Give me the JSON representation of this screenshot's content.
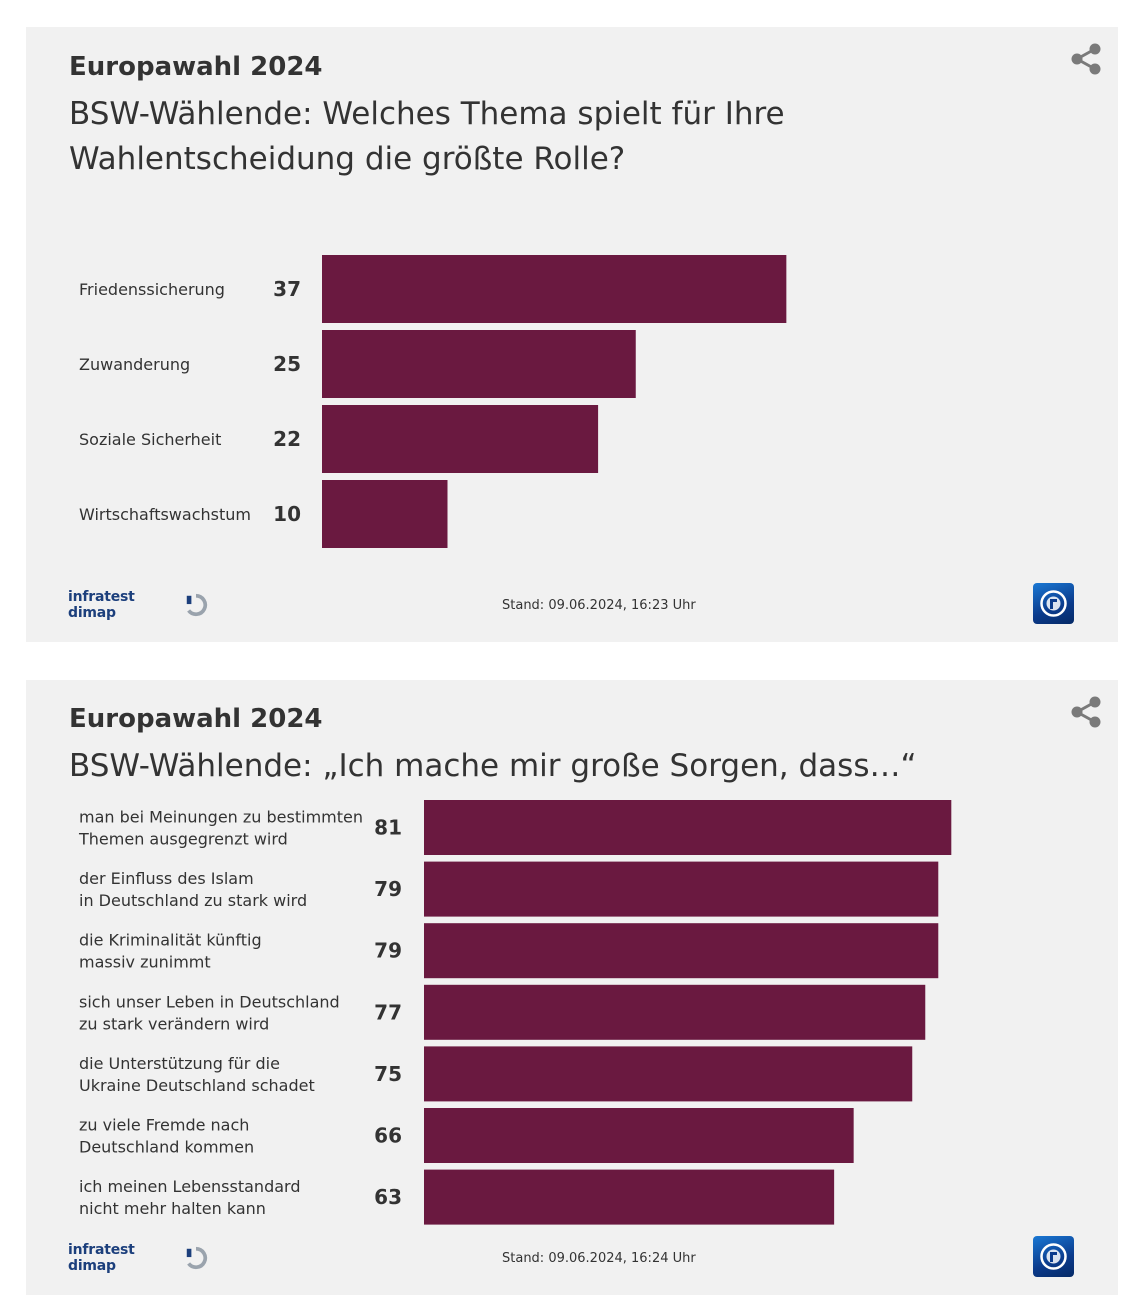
{
  "colors": {
    "bar": "#6a1940",
    "panel_bg": "#f1f1f1",
    "text": "#333333",
    "brand_infratest": "#1c3f7c"
  },
  "panels": [
    {
      "kicker": "Europawahl 2024",
      "title": "BSW-Wählende: Welches Thema spielt für Ihre Wahlentscheidung die größte Rolle?",
      "source_logo": "infratest dimap",
      "stand": "Stand:  09.06.2024, 16:23 Uhr",
      "share_icon": "share-icon",
      "brand_icon": "tagesschau-logo-icon"
    },
    {
      "kicker": "Europawahl 2024",
      "title": "BSW-Wählende: „Ich mache mir große Sorgen, dass…“",
      "source_logo": "infratest dimap",
      "stand": "Stand:  09.06.2024, 16:24 Uhr",
      "share_icon": "share-icon",
      "brand_icon": "tagesschau-logo-icon"
    }
  ],
  "chart_data": [
    {
      "type": "bar",
      "orientation": "horizontal",
      "title": "BSW-Wählende: Welches Thema spielt für Ihre Wahlentscheidung die größte Rolle?",
      "categories": [
        "Friedenssicherung",
        "Zuwanderung",
        "Soziale Sicherheit",
        "Wirtschaftswachstum"
      ],
      "values": [
        37,
        25,
        22,
        10
      ],
      "unit": "%",
      "xlabel": "",
      "ylabel": ""
    },
    {
      "type": "bar",
      "orientation": "horizontal",
      "title": "BSW-Wählende: „Ich mache mir große Sorgen, dass…“",
      "categories": [
        [
          "man bei Meinungen zu bestimmten",
          "Themen ausgegrenzt wird"
        ],
        [
          "der Einfluss des Islam",
          "in Deutschland zu stark wird"
        ],
        [
          "die Kriminalität künftig",
          "massiv zunimmt"
        ],
        [
          "sich unser Leben in Deutschland",
          "zu stark verändern wird"
        ],
        [
          "die Unterstützung für die",
          "Ukraine Deutschland schadet"
        ],
        [
          "zu viele Fremde nach",
          "Deutschland kommen"
        ],
        [
          "ich meinen Lebensstandard",
          "nicht mehr halten kann"
        ]
      ],
      "values": [
        81,
        79,
        79,
        77,
        75,
        66,
        63
      ],
      "unit": "%",
      "xlabel": "",
      "ylabel": ""
    }
  ]
}
